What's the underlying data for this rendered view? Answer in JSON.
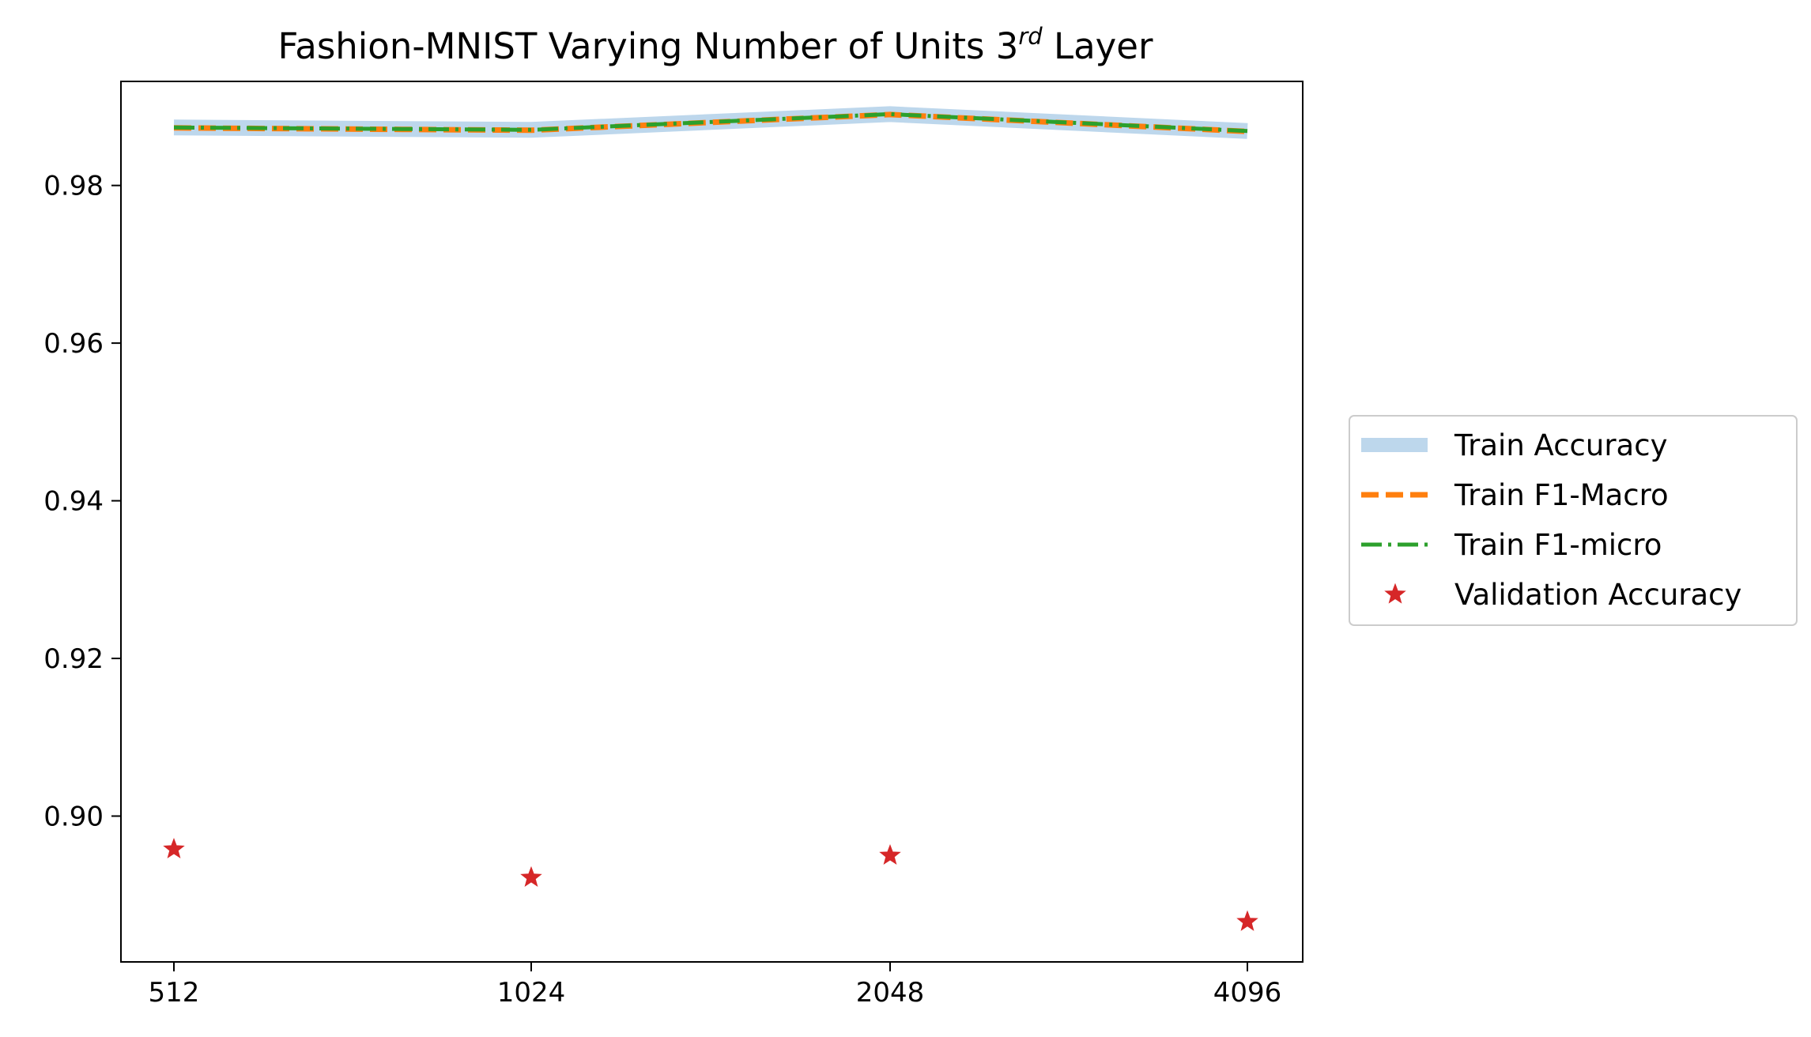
{
  "chart_data": {
    "type": "line",
    "title": "Fashion-MNIST Varying Number of Units 3",
    "title_superscript": "rd",
    "title_suffix": " Layer",
    "xlabel": "",
    "ylabel": "",
    "categories": [
      "512",
      "1024",
      "2048",
      "4096"
    ],
    "ylim": [
      0.8815,
      0.9932
    ],
    "yticks": [
      0.9,
      0.92,
      0.94,
      0.96,
      0.98
    ],
    "ytick_labels": [
      "0.90",
      "0.92",
      "0.94",
      "0.96",
      "0.98"
    ],
    "grid": false,
    "legend_position": "center-right-outside",
    "series": [
      {
        "name": "Train Accuracy",
        "color": "#b6d3ea",
        "style": "solid-wide",
        "values": [
          0.98735,
          0.98705,
          0.98905,
          0.9869
        ]
      },
      {
        "name": "Train F1-Macro",
        "color": "#ff7f0e",
        "style": "dashed",
        "values": [
          0.9873,
          0.987,
          0.989,
          0.98685
        ]
      },
      {
        "name": "Train F1-micro",
        "color": "#2ca02c",
        "style": "dashdot",
        "values": [
          0.98735,
          0.98705,
          0.98905,
          0.9869
        ]
      },
      {
        "name": "Validation Accuracy",
        "color": "#d62728",
        "style": "star-markers",
        "values": [
          0.8958,
          0.8922,
          0.895,
          0.8866
        ]
      }
    ]
  }
}
